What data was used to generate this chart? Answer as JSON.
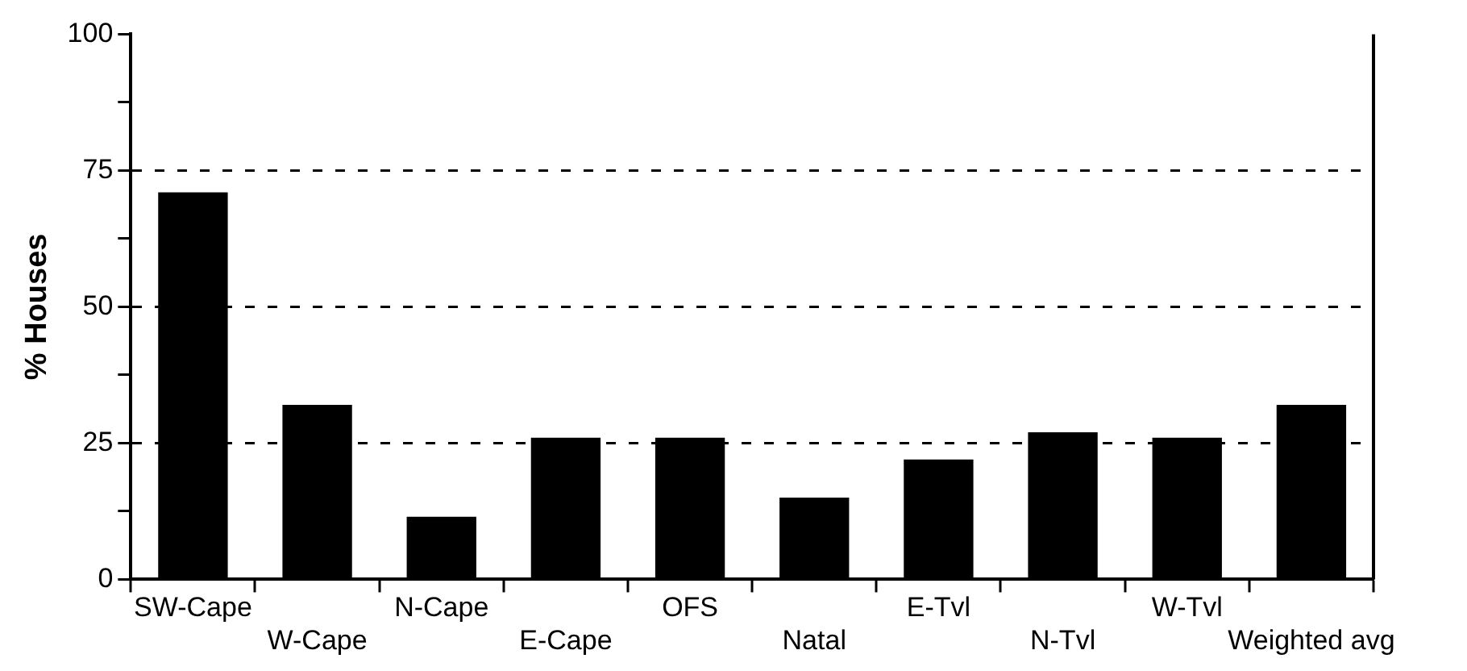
{
  "chart_data": {
    "type": "bar",
    "ylabel": "% Houses",
    "categories": [
      "SW-Cape",
      "W-Cape",
      "N-Cape",
      "E-Cape",
      "OFS",
      "Natal",
      "E-Tvl",
      "N-Tvl",
      "W-Tvl",
      "Weighted avg"
    ],
    "values": [
      71,
      32,
      11.5,
      26,
      26,
      15,
      22,
      27,
      26,
      32
    ],
    "color": "#000000",
    "ylim": [
      0,
      100
    ],
    "yticks": [
      0,
      {
        "value": 12.5,
        "label": null
      },
      25,
      {
        "value": 37.5,
        "label": null
      },
      50,
      {
        "value": 62.5,
        "label": null
      },
      75,
      {
        "value": 87.5,
        "label": null
      },
      100
    ],
    "grid": "y",
    "line_style": "dashed"
  }
}
